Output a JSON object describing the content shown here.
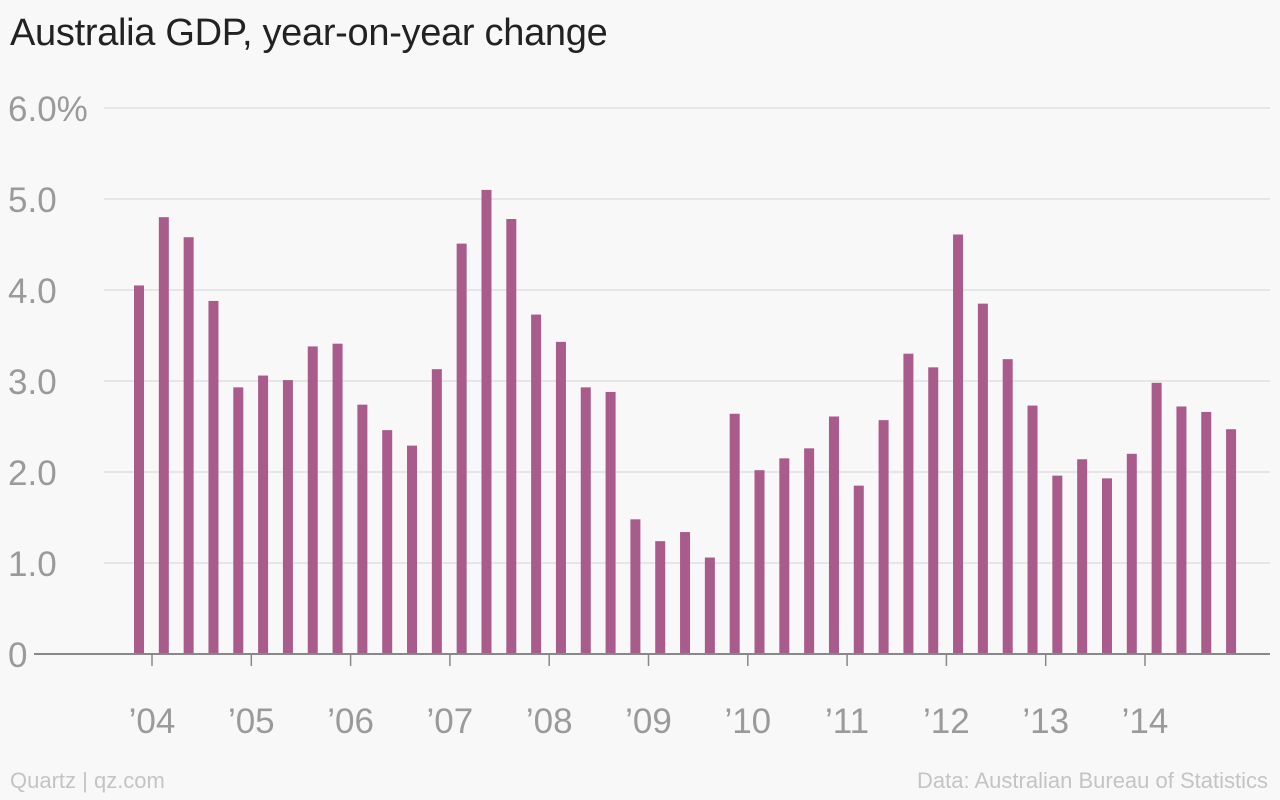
{
  "title": "Australia GDP, year-on-year change",
  "footer": {
    "credit": "Quartz | qz.com",
    "source": "Data: Australian Bureau of Statistics"
  },
  "colors": {
    "bar": "#a95b8c",
    "grid": "#e6e6e6",
    "axis": "#888888",
    "tick_text": "#9a9a9a",
    "background": "#f8f8f8"
  },
  "chart_data": {
    "type": "bar",
    "title": "Australia GDP, year-on-year change",
    "xlabel": "",
    "ylabel": "",
    "ylim": [
      0,
      6
    ],
    "y_ticks": [
      {
        "value": 0,
        "label": "0"
      },
      {
        "value": 1,
        "label": "1.0"
      },
      {
        "value": 2,
        "label": "2.0"
      },
      {
        "value": 3,
        "label": "3.0"
      },
      {
        "value": 4,
        "label": "4.0"
      },
      {
        "value": 5,
        "label": "5.0"
      },
      {
        "value": 6,
        "label": "6.0%"
      }
    ],
    "x_tick_labels": [
      "’04",
      "’05",
      "’06",
      "’07",
      "’08",
      "’09",
      "’10",
      "’11",
      "’12",
      "’13",
      "’14"
    ],
    "grid": true,
    "legend": "none",
    "categories": [
      "2003-Q4",
      "2004-Q1",
      "2004-Q2",
      "2004-Q3",
      "2004-Q4",
      "2005-Q1",
      "2005-Q2",
      "2005-Q3",
      "2005-Q4",
      "2006-Q1",
      "2006-Q2",
      "2006-Q3",
      "2006-Q4",
      "2007-Q1",
      "2007-Q2",
      "2007-Q3",
      "2007-Q4",
      "2008-Q1",
      "2008-Q2",
      "2008-Q3",
      "2008-Q4",
      "2009-Q1",
      "2009-Q2",
      "2009-Q3",
      "2009-Q4",
      "2010-Q1",
      "2010-Q2",
      "2010-Q3",
      "2010-Q4",
      "2011-Q1",
      "2011-Q2",
      "2011-Q3",
      "2011-Q4",
      "2012-Q1",
      "2012-Q2",
      "2012-Q3",
      "2012-Q4",
      "2013-Q1",
      "2013-Q2",
      "2013-Q3",
      "2013-Q4",
      "2014-Q1",
      "2014-Q2",
      "2014-Q3",
      "2014-Q4"
    ],
    "values": [
      4.05,
      4.8,
      4.58,
      3.88,
      2.93,
      3.06,
      3.01,
      3.38,
      3.41,
      2.74,
      2.46,
      2.29,
      3.13,
      4.51,
      5.1,
      4.78,
      3.73,
      3.43,
      2.93,
      2.88,
      1.48,
      1.24,
      1.34,
      1.06,
      2.64,
      2.02,
      2.15,
      2.26,
      2.61,
      1.85,
      2.57,
      3.3,
      3.15,
      4.61,
      3.85,
      3.24,
      2.73,
      1.96,
      2.14,
      1.93,
      2.2,
      2.98,
      2.72,
      2.66,
      2.47
    ]
  }
}
